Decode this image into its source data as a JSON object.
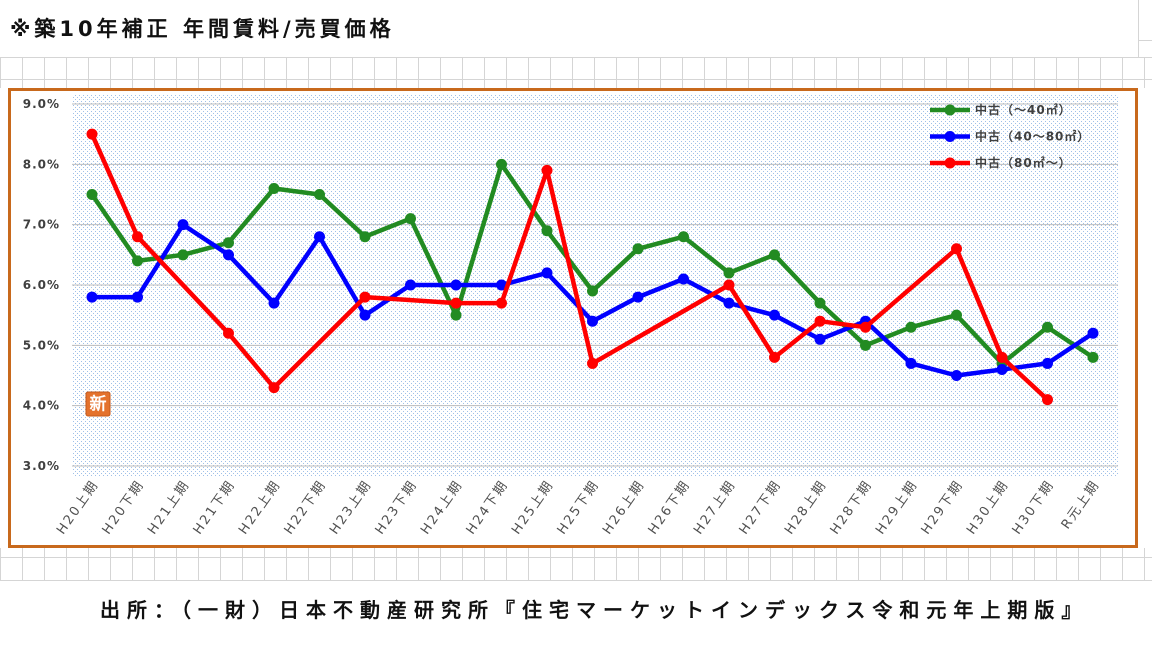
{
  "source": "出所：（一財）日本不動産研究所『住宅マーケットインデックス令和元年上期版』",
  "badge": "新",
  "chart_data": {
    "type": "line",
    "title": "※築10年補正 年間賃料/売買価格",
    "categories": [
      "H20上期",
      "H20下期",
      "H21上期",
      "H21下期",
      "H22上期",
      "H22下期",
      "H23上期",
      "H23下期",
      "H24上期",
      "H24下期",
      "H25上期",
      "H25下期",
      "H26上期",
      "H26下期",
      "H27上期",
      "H27下期",
      "H28上期",
      "H28下期",
      "H29上期",
      "H29下期",
      "H30上期",
      "H30下期",
      "R元上期"
    ],
    "ylim": [
      3.0,
      9.0
    ],
    "y_ticks": [
      {
        "value": 9.0,
        "label": "9.0%"
      },
      {
        "value": 8.0,
        "label": "8.0%"
      },
      {
        "value": 7.0,
        "label": "7.0%"
      },
      {
        "value": 6.0,
        "label": "6.0%"
      },
      {
        "value": 5.0,
        "label": "5.0%"
      },
      {
        "value": 4.0,
        "label": "4.0%"
      },
      {
        "value": 3.0,
        "label": "3.0%"
      }
    ],
    "grid": true,
    "legend_position": "top-right",
    "series": [
      {
        "name": "中古（～40㎡）",
        "color": "#228b22",
        "values": [
          7.5,
          6.4,
          6.5,
          6.7,
          7.6,
          7.5,
          6.8,
          7.1,
          5.5,
          8.0,
          6.9,
          5.9,
          6.6,
          6.8,
          6.2,
          6.5,
          5.7,
          5.0,
          5.3,
          5.5,
          4.7,
          5.3,
          4.8
        ]
      },
      {
        "name": "中古（40～80㎡）",
        "color": "#0000ff",
        "values": [
          5.8,
          5.8,
          7.0,
          6.5,
          5.7,
          6.8,
          5.5,
          6.0,
          6.0,
          6.0,
          6.2,
          5.4,
          5.8,
          6.1,
          5.7,
          5.5,
          5.1,
          5.4,
          4.7,
          4.5,
          4.6,
          4.7,
          5.2
        ]
      },
      {
        "name": "中古（80㎡～）",
        "color": "#ff0000",
        "values": [
          8.5,
          6.8,
          null,
          5.2,
          4.3,
          null,
          5.8,
          null,
          5.7,
          5.7,
          7.9,
          4.7,
          null,
          null,
          6.0,
          4.8,
          5.4,
          5.3,
          null,
          6.6,
          4.8,
          4.1,
          null
        ]
      }
    ]
  }
}
